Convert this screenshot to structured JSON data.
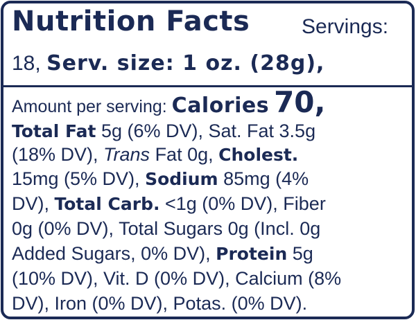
{
  "label": {
    "title": "Nutrition Facts",
    "servings_text": "Servings:",
    "servings_value": "18,",
    "serving_size": "Serv. size: 1 oz. (28g),",
    "amount_per_serving": "Amount per serving:",
    "calories_label": "Calories",
    "calories_value": "70,",
    "total_fat_label": "Total Fat",
    "total_fat_value": " 5g (6% DV), Sat. Fat 3.5g",
    "sat_fat_dv": "(18% DV), ",
    "trans_label": "Trans",
    "trans_value": " Fat 0g, ",
    "cholest_label": "Cholest.",
    "cholest_value": "15mg (5% DV), ",
    "sodium_label": "Sodium",
    "sodium_value": " 85mg (4%",
    "sodium_dv_end": "DV), ",
    "carb_label": "Total Carb.",
    "carb_value": "  <1g (0% DV), Fiber",
    "fiber_value": "0g (0% DV), Total Sugars 0g (Incl. 0g",
    "added_sugars": "Added Sugars, 0% DV), ",
    "protein_label": "Protein",
    "protein_value": " 5g",
    "vitd_line": "(10% DV), Vit. D (0% DV), Calcium (8%",
    "last_line": "DV), Iron (0% DV), Potas. (0% DV)."
  }
}
